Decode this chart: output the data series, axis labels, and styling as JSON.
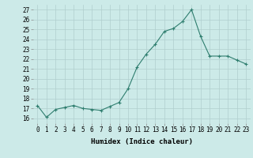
{
  "x": [
    0,
    1,
    2,
    3,
    4,
    5,
    6,
    7,
    8,
    9,
    10,
    11,
    12,
    13,
    14,
    15,
    16,
    17,
    18,
    19,
    20,
    21,
    22,
    23
  ],
  "y": [
    17.3,
    16.1,
    16.9,
    17.1,
    17.3,
    17.0,
    16.9,
    16.8,
    17.2,
    17.6,
    19.0,
    21.2,
    22.5,
    23.5,
    24.8,
    25.1,
    25.8,
    27.0,
    24.3,
    22.3,
    22.3,
    22.3,
    21.9,
    21.5
  ],
  "xlim": [
    -0.5,
    23.5
  ],
  "ylim": [
    15.5,
    27.5
  ],
  "yticks": [
    16,
    17,
    18,
    19,
    20,
    21,
    22,
    23,
    24,
    25,
    26,
    27
  ],
  "xticks": [
    0,
    1,
    2,
    3,
    4,
    5,
    6,
    7,
    8,
    9,
    10,
    11,
    12,
    13,
    14,
    15,
    16,
    17,
    18,
    19,
    20,
    21,
    22,
    23
  ],
  "xlabel": "Humidex (Indice chaleur)",
  "line_color": "#2e7d6e",
  "marker": "+",
  "bg_color": "#cceae8",
  "grid_color": "#b0cece",
  "label_fontsize": 6.5,
  "tick_fontsize": 5.5
}
